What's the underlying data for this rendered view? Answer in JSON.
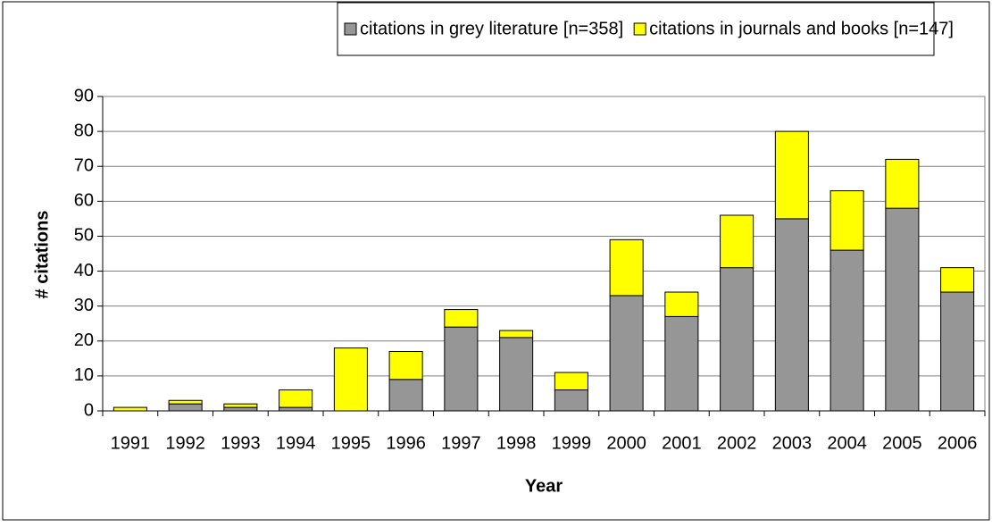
{
  "chart_data": {
    "type": "stacked_bar",
    "x_label": "Year",
    "y_label": "# citations",
    "categories": [
      "1991",
      "1992",
      "1993",
      "1994",
      "1995",
      "1996",
      "1997",
      "1998",
      "1999",
      "2000",
      "2001",
      "2002",
      "2003",
      "2004",
      "2005",
      "2006"
    ],
    "series": [
      {
        "name": "citations in grey literature [n=358]",
        "color": "#969696",
        "values": [
          0,
          2,
          1,
          1,
          0,
          9,
          24,
          21,
          6,
          33,
          27,
          41,
          55,
          46,
          58,
          34
        ]
      },
      {
        "name": "citations in journals and books [n=147]",
        "color": "#ffff00",
        "values": [
          1,
          1,
          1,
          5,
          18,
          8,
          5,
          2,
          5,
          16,
          7,
          15,
          25,
          17,
          14,
          7
        ]
      }
    ],
    "ylim": [
      0,
      90
    ],
    "yticks": [
      0,
      10,
      20,
      30,
      40,
      50,
      60,
      70,
      80,
      90
    ],
    "grid": true,
    "legend": "top"
  }
}
